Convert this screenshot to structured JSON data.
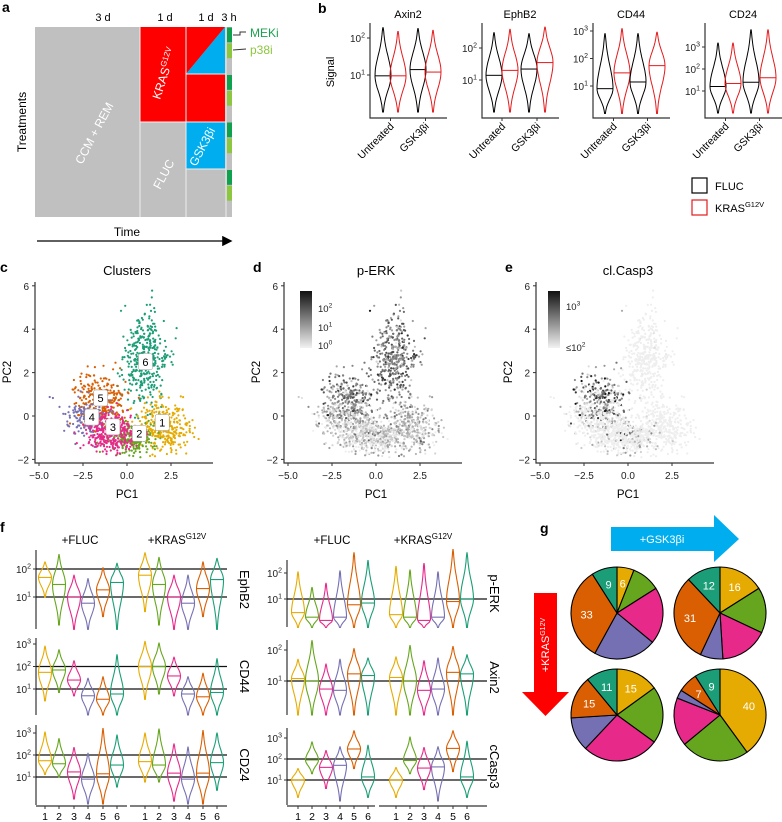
{
  "panel_labels": {
    "a": "a",
    "b": "b",
    "c": "c",
    "d": "d",
    "e": "e",
    "f": "f",
    "g": "g"
  },
  "cluster_colors": [
    "#E6AB02",
    "#66A61E",
    "#E7298A",
    "#7570B3",
    "#D95F02",
    "#1B9E77"
  ],
  "panel_a": {
    "durations": [
      "3 d",
      "1 d",
      "1 d",
      "3 h"
    ],
    "treatments": {
      "base": "CCM + REM",
      "kras": "KRAS",
      "kras_sup": "G12V",
      "fluc": "FLUC",
      "gsk": "GSK3βi"
    },
    "inhibitors": [
      {
        "name": "MEKi",
        "color": "#1BA24E"
      },
      {
        "name": "p38i",
        "color": "#8CC63F"
      }
    ],
    "y_label": "Treatments",
    "x_label": "Time",
    "colors": {
      "base": "#C0C0C0",
      "kras": "#FF0000",
      "gsk": "#00AEEF",
      "meki": "#0FA14E",
      "p38i": "#8DC63F"
    }
  },
  "chart_data": [
    {
      "id": "b",
      "type": "violin",
      "ylabel": "Signal",
      "yscale": "log",
      "categories": [
        "Untreated",
        "GSK3βi"
      ],
      "legend": [
        {
          "name": "FLUC",
          "color": "#000000"
        },
        {
          "name": "KRAS",
          "sup": "G12V",
          "color": "#E41A1C"
        }
      ],
      "legend_position": "bottom-right",
      "panels": [
        {
          "title": "Axin2",
          "ticks": [
            10,
            100
          ],
          "tick_labels": [
            "10^1",
            "10^2"
          ],
          "violins": [
            {
              "condition": "Untreated",
              "line": "FLUC",
              "median": 9.5,
              "min": 1,
              "max": 190
            },
            {
              "condition": "Untreated",
              "line": "KRAS",
              "median": 9.5,
              "min": 1,
              "max": 150
            },
            {
              "condition": "GSK3βi",
              "line": "FLUC",
              "median": 14,
              "min": 1,
              "max": 180
            },
            {
              "condition": "GSK3βi",
              "line": "KRAS",
              "median": 12,
              "min": 1,
              "max": 160
            }
          ]
        },
        {
          "title": "EphB2",
          "ticks": [
            10,
            100
          ],
          "tick_labels": [
            "10^1",
            "10^2"
          ],
          "violins": [
            {
              "condition": "Untreated",
              "line": "FLUC",
              "median": 14,
              "min": 1,
              "max": 300
            },
            {
              "condition": "Untreated",
              "line": "KRAS",
              "median": 20,
              "min": 1,
              "max": 380
            },
            {
              "condition": "GSK3βi",
              "line": "FLUC",
              "median": 22,
              "min": 1,
              "max": 280
            },
            {
              "condition": "GSK3βi",
              "line": "KRAS",
              "median": 35,
              "min": 1,
              "max": 450
            }
          ]
        },
        {
          "title": "CD44",
          "ticks": [
            10,
            100,
            1000
          ],
          "tick_labels": [
            "10^1",
            "10^2",
            "10^3"
          ],
          "violins": [
            {
              "condition": "Untreated",
              "line": "FLUC",
              "median": 8,
              "min": 1,
              "max": 800
            },
            {
              "condition": "Untreated",
              "line": "KRAS",
              "median": 30,
              "min": 1,
              "max": 1200
            },
            {
              "condition": "GSK3βi",
              "line": "FLUC",
              "median": 14,
              "min": 1,
              "max": 800
            },
            {
              "condition": "GSK3βi",
              "line": "KRAS",
              "median": 55,
              "min": 1,
              "max": 900
            }
          ]
        },
        {
          "title": "CD24",
          "ticks": [
            10,
            100,
            1000
          ],
          "tick_labels": [
            "10^1",
            "10^2",
            "10^3"
          ],
          "violins": [
            {
              "condition": "Untreated",
              "line": "FLUC",
              "median": 16,
              "min": 1,
              "max": 1500
            },
            {
              "condition": "Untreated",
              "line": "KRAS",
              "median": 22,
              "min": 1,
              "max": 1500
            },
            {
              "condition": "GSK3βi",
              "line": "FLUC",
              "median": 25,
              "min": 1,
              "max": 6000
            },
            {
              "condition": "GSK3βi",
              "line": "KRAS",
              "median": 40,
              "min": 1,
              "max": 6000
            }
          ]
        }
      ]
    },
    {
      "id": "c",
      "type": "scatter",
      "title": "Clusters",
      "xlabel": "PC1",
      "ylabel": "PC2",
      "xlim": [
        -5,
        4.5
      ],
      "ylim": [
        -2,
        6
      ],
      "xticks": [
        -5,
        -2.5,
        0,
        2.5
      ],
      "xtick_labels": [
        "−5.0",
        "−2.5",
        "0.0",
        "2.5"
      ],
      "yticks": [
        -2,
        0,
        2,
        4,
        6
      ],
      "ytick_labels": [
        "−2",
        "0",
        "2",
        "4",
        "6"
      ],
      "clusters": [
        {
          "label": "1",
          "center": [
            2.0,
            -0.5
          ],
          "sd": [
            0.8,
            0.6
          ],
          "n": 350,
          "label_pos": [
            2.0,
            -0.3
          ]
        },
        {
          "label": "2",
          "center": [
            0.4,
            -1.0
          ],
          "sd": [
            0.6,
            0.35
          ],
          "n": 250,
          "label_pos": [
            0.7,
            -0.8
          ]
        },
        {
          "label": "3",
          "center": [
            -0.9,
            -0.8
          ],
          "sd": [
            0.7,
            0.45
          ],
          "n": 350,
          "label_pos": [
            -0.8,
            -0.5
          ]
        },
        {
          "label": "4",
          "center": [
            -2.3,
            -0.1
          ],
          "sd": [
            0.7,
            0.4
          ],
          "n": 150,
          "label_pos": [
            -2.0,
            -0.05
          ]
        },
        {
          "label": "5",
          "center": [
            -1.6,
            0.7
          ],
          "sd": [
            0.7,
            0.6
          ],
          "n": 300,
          "label_pos": [
            -1.5,
            0.83
          ]
        },
        {
          "label": "6",
          "center": [
            1.0,
            2.6
          ],
          "sd": [
            0.6,
            1.1
          ],
          "n": 400,
          "label_pos": [
            1.05,
            2.5
          ]
        }
      ]
    },
    {
      "id": "d",
      "type": "scatter",
      "title": "p-ERK",
      "xlabel": "PC1",
      "ylabel": "PC2",
      "xlim": [
        -5,
        4.5
      ],
      "ylim": [
        -2,
        6
      ],
      "xticks": [
        -5,
        -2.5,
        0,
        2.5
      ],
      "xtick_labels": [
        "−5.0",
        "−2.5",
        "0.0",
        "2.5"
      ],
      "yticks": [
        -2,
        0,
        2,
        4,
        6
      ],
      "ytick_labels": [
        "−2",
        "0",
        "2",
        "4",
        "6"
      ],
      "color_by": "p-ERK",
      "colorbar_labels": [
        "10^2",
        "10^1",
        "10^0"
      ],
      "colorbar_log_range": [
        0,
        2.5
      ],
      "cluster_log_mean": [
        0.5,
        0.4,
        0.3,
        0.4,
        1.2,
        1.3
      ]
    },
    {
      "id": "e",
      "type": "scatter",
      "title": "cl.Casp3",
      "xlabel": "PC1",
      "ylabel": "PC2",
      "xlim": [
        -5,
        4.5
      ],
      "ylim": [
        -2,
        6
      ],
      "xticks": [
        -5,
        -2.5,
        0,
        2.5
      ],
      "xtick_labels": [
        "−5.0",
        "−2.5",
        "0.0",
        "2.5"
      ],
      "yticks": [
        -2,
        0,
        2,
        4,
        6
      ],
      "ytick_labels": [
        "−2",
        "0",
        "2",
        "4",
        "6"
      ],
      "color_by": "cl.Casp3",
      "colorbar_labels": [
        "10^3",
        "≤10^2"
      ],
      "colorbar_log_range": [
        2,
        3.2
      ],
      "cluster_log_mean": [
        1.0,
        1.9,
        1.6,
        1.7,
        2.5,
        1.1
      ]
    },
    {
      "id": "f",
      "type": "violin",
      "yscale": "log",
      "group_titles": [
        {
          "text": "+FLUC"
        },
        {
          "text": "+KRAS",
          "sup": "G12V"
        }
      ],
      "x_tick_labels": [
        "1",
        "2",
        "3",
        "4",
        "5",
        "6"
      ],
      "columns": [
        {
          "rows": [
            {
              "marker": "EphB2",
              "ticks": [
                10,
                100
              ],
              "tick_labels": [
                "10^1",
                "10^2"
              ],
              "reference_lines": [
                10,
                100
              ],
              "median": [
                50,
                28,
                10,
                6,
                18,
                33,
                60,
                28,
                10,
                6,
                20,
                42
              ],
              "min": [
                10,
                1,
                0.7,
                0.7,
                2,
                0.7,
                3,
                1,
                0.7,
                0.7,
                2,
                0.7
              ],
              "max": [
                180,
                330,
                60,
                45,
                110,
                160,
                380,
                260,
                60,
                60,
                180,
                240
              ]
            },
            {
              "marker": "CD44",
              "ticks": [
                10,
                100,
                1000
              ],
              "tick_labels": [
                "10^1",
                "10^2",
                "10^3"
              ],
              "reference_lines": [
                10,
                100
              ],
              "median": [
                55,
                70,
                25,
                5,
                3.5,
                6,
                100,
                100,
                38,
                6,
                4.5,
                7
              ],
              "min": [
                3,
                7,
                5,
                0.7,
                0.7,
                0.7,
                3.5,
                6,
                5,
                0.7,
                0.7,
                0.7
              ],
              "max": [
                800,
                550,
                180,
                30,
                35,
                330,
                1300,
                1100,
                260,
                35,
                50,
                220
              ]
            },
            {
              "marker": "CD24",
              "ticks": [
                10,
                100,
                1000
              ],
              "tick_labels": [
                "10^1",
                "10^2",
                "10^3"
              ],
              "reference_lines": [
                10,
                100
              ],
              "median": [
                55,
                40,
                17,
                8,
                14,
                35,
                50,
                35,
                15,
                8,
                15,
                45
              ],
              "min": [
                13,
                10,
                1,
                0.6,
                0.6,
                3.5,
                6,
                6,
                0.8,
                0.6,
                0.6,
                2.5
              ],
              "max": [
                1100,
                550,
                220,
                120,
                1600,
                800,
                1000,
                1500,
                320,
                230,
                1300,
                1000
              ]
            }
          ]
        },
        {
          "rows": [
            {
              "marker": "p-ERK",
              "ticks": [
                10,
                100
              ],
              "tick_labels": [
                "10^1",
                "10^2"
              ],
              "reference_lines": [
                10
              ],
              "median": [
                3,
                2,
                1.5,
                2,
                6,
                7,
                2.5,
                2,
                1.5,
                2,
                8,
                10
              ],
              "min": [
                0.8,
                0.8,
                0.8,
                0.8,
                0.8,
                0.8,
                0.8,
                0.8,
                0.8,
                0.8,
                0.8,
                0.8
              ],
              "max": [
                110,
                28,
                40,
                120,
                600,
                300,
                180,
                130,
                230,
                110,
                800,
                600
              ]
            },
            {
              "marker": "Axin2",
              "ticks": [
                10,
                100
              ],
              "tick_labels": [
                "10^1",
                "10^2"
              ],
              "reference_lines": [
                10
              ],
              "median": [
                12,
                10,
                5.5,
                5,
                17,
                15,
                13,
                10,
                5,
                5.5,
                19,
                17
              ],
              "min": [
                0.8,
                0.8,
                0.8,
                0.8,
                0.8,
                0.8,
                0.8,
                0.8,
                0.8,
                0.8,
                0.8,
                0.8
              ],
              "max": [
                50,
                200,
                35,
                50,
                110,
                55,
                60,
                140,
                45,
                55,
                130,
                70
              ]
            },
            {
              "marker": "cCasp3",
              "ticks": [
                10,
                100,
                1000
              ],
              "tick_labels": [
                "10^1",
                "10^2",
                "10^3"
              ],
              "reference_lines": [
                10,
                100
              ],
              "median": [
                10,
                90,
                40,
                50,
                300,
                14,
                10,
                85,
                37,
                42,
                320,
                14
              ],
              "min": [
                1.5,
                20,
                4,
                1,
                35,
                1.5,
                1.5,
                20,
                3.5,
                1,
                25,
                1.5
              ],
              "max": [
                35,
                650,
                250,
                380,
                2200,
                450,
                40,
                1100,
                350,
                380,
                2200,
                700
              ]
            }
          ]
        }
      ]
    },
    {
      "id": "g",
      "type": "pie",
      "arrows": {
        "horizontal": {
          "text": "+GSK3βi",
          "color": "#00AEEF"
        },
        "vertical": {
          "text": "+KRAS",
          "sup": "G12V",
          "color": "#FF0000"
        }
      },
      "slice_order": [
        "1",
        "2",
        "3",
        "4",
        "5",
        "6"
      ],
      "pies": [
        {
          "condition": "FLUC untreated",
          "values": [
            6,
            10,
            20,
            22,
            33,
            9
          ],
          "shown_labels": [
            0,
            4,
            5
          ]
        },
        {
          "condition": "FLUC + GSK3βi",
          "values": [
            16,
            16,
            17,
            8,
            31,
            12
          ],
          "shown_labels": [
            0,
            4,
            5
          ]
        },
        {
          "condition": "KRAS untreated",
          "values": [
            15,
            20,
            27,
            12,
            15,
            11
          ],
          "shown_labels": [
            0,
            4,
            5
          ]
        },
        {
          "condition": "KRAS + GSK3βi",
          "values": [
            40,
            24,
            17,
            3,
            7,
            9
          ],
          "shown_labels": [
            0,
            4,
            5
          ]
        }
      ]
    }
  ]
}
